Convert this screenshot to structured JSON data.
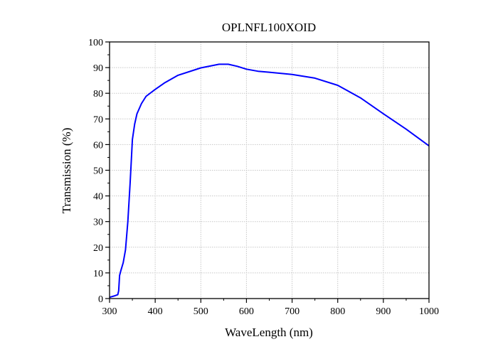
{
  "chart_data": {
    "type": "line",
    "title": "OPLNFL100XOID",
    "xlabel": "WaveLength (nm)",
    "ylabel": "Transmission (%)",
    "xlim": [
      300,
      1000
    ],
    "ylim": [
      0,
      100
    ],
    "xticks": [
      300,
      400,
      500,
      600,
      700,
      800,
      900,
      1000
    ],
    "yticks": [
      0,
      10,
      20,
      30,
      40,
      50,
      60,
      70,
      80,
      90,
      100
    ],
    "grid": true,
    "line_color": "#0000ff",
    "series": [
      {
        "name": "Transmission",
        "x": [
          300,
          310,
          318,
          320,
          322,
          325,
          330,
          335,
          340,
          345,
          348,
          350,
          355,
          360,
          370,
          380,
          400,
          420,
          450,
          500,
          540,
          560,
          580,
          600,
          625,
          650,
          700,
          750,
          800,
          850,
          900,
          950,
          1000
        ],
        "y": [
          0.5,
          1,
          1.5,
          3,
          9,
          11,
          14,
          19,
          30,
          45,
          55,
          62,
          68,
          72,
          76,
          78.8,
          81.5,
          84,
          87,
          89.9,
          91.3,
          91.3,
          90.5,
          89.4,
          88.6,
          88.2,
          87.3,
          85.9,
          83.1,
          78.2,
          72,
          66,
          59.5
        ]
      }
    ]
  }
}
